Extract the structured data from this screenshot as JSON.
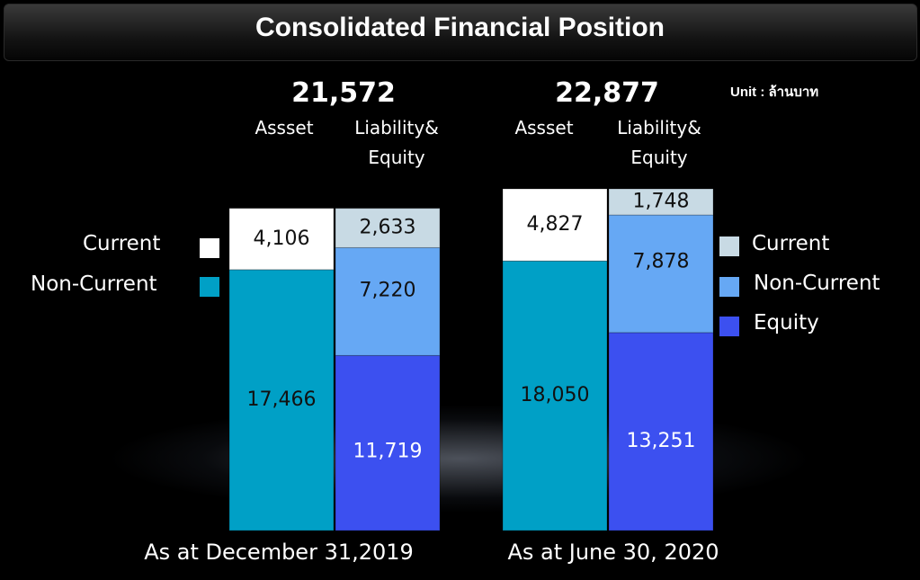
{
  "chart_data": {
    "type": "bar",
    "title": "Consolidated Financial Position",
    "unit": "Unit : ล้านบาท",
    "groups": [
      {
        "label": "As at December 31,2019",
        "total": "21,572",
        "asset_label": "Assset",
        "liability_label": "Liability& Equity",
        "asset": {
          "current": 4106,
          "non_current": 17466
        },
        "liability_equity": {
          "current": 2633,
          "non_current": 7220,
          "equity": 11719
        },
        "display": {
          "asset_current": "4,106",
          "asset_non_current": "17,466",
          "liab_current": "2,633",
          "liab_non_current": "7,220",
          "equity": "11,719"
        }
      },
      {
        "label": "As at June 30, 2020",
        "total": "22,877",
        "asset_label": "Assset",
        "liability_label": "Liability& Equity",
        "asset": {
          "current": 4827,
          "non_current": 18050
        },
        "liability_equity": {
          "current": 1748,
          "non_current": 7878,
          "equity": 13251
        },
        "display": {
          "asset_current": "4,827",
          "asset_non_current": "18,050",
          "liab_current": "1,748",
          "liab_non_current": "7,878",
          "equity": "13,251"
        }
      }
    ],
    "legend_left": [
      {
        "name": "Current",
        "color": "#ffffff"
      },
      {
        "name": "Non-Current",
        "color": "#00a0c6"
      }
    ],
    "legend_right": [
      {
        "name": "Current",
        "color": "#c8dae4"
      },
      {
        "name": "Non-Current",
        "color": "#66a8f4"
      },
      {
        "name": "Equity",
        "color": "#3c50f0"
      }
    ],
    "colors": {
      "asset_current": "#ffffff",
      "asset_non_current": "#00a0c6",
      "liab_current": "#c8dae4",
      "liab_non_current": "#66a8f4",
      "equity": "#3c50f0"
    },
    "ylim": [
      0,
      22877
    ]
  }
}
